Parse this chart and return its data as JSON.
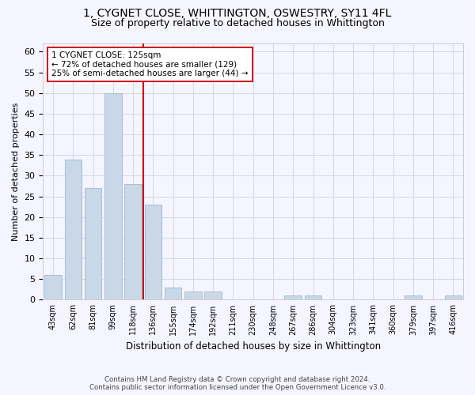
{
  "title_line1": "1, CYGNET CLOSE, WHITTINGTON, OSWESTRY, SY11 4FL",
  "title_line2": "Size of property relative to detached houses in Whittington",
  "xlabel": "Distribution of detached houses by size in Whittington",
  "ylabel": "Number of detached properties",
  "categories": [
    "43sqm",
    "62sqm",
    "81sqm",
    "99sqm",
    "118sqm",
    "136sqm",
    "155sqm",
    "174sqm",
    "192sqm",
    "211sqm",
    "230sqm",
    "248sqm",
    "267sqm",
    "286sqm",
    "304sqm",
    "323sqm",
    "341sqm",
    "360sqm",
    "379sqm",
    "397sqm",
    "416sqm"
  ],
  "values": [
    6,
    34,
    27,
    50,
    28,
    23,
    3,
    2,
    2,
    0,
    0,
    0,
    1,
    1,
    0,
    0,
    0,
    0,
    1,
    0,
    1
  ],
  "bar_color": "#c8d8e8",
  "bar_edge_color": "#a0b8cc",
  "red_line_color": "#cc0000",
  "annotation_text": "1 CYGNET CLOSE: 125sqm\n← 72% of detached houses are smaller (129)\n25% of semi-detached houses are larger (44) →",
  "annotation_box_color": "#ffffff",
  "annotation_box_edge": "#cc0000",
  "ylim": [
    0,
    62
  ],
  "yticks": [
    0,
    5,
    10,
    15,
    20,
    25,
    30,
    35,
    40,
    45,
    50,
    55,
    60
  ],
  "footer_line1": "Contains HM Land Registry data © Crown copyright and database right 2024.",
  "footer_line2": "Contains public sector information licensed under the Open Government Licence v3.0.",
  "bg_color": "#f5f5ff",
  "grid_color": "#d0d8e8",
  "title_fontsize": 10,
  "subtitle_fontsize": 9,
  "bar_width": 0.85
}
